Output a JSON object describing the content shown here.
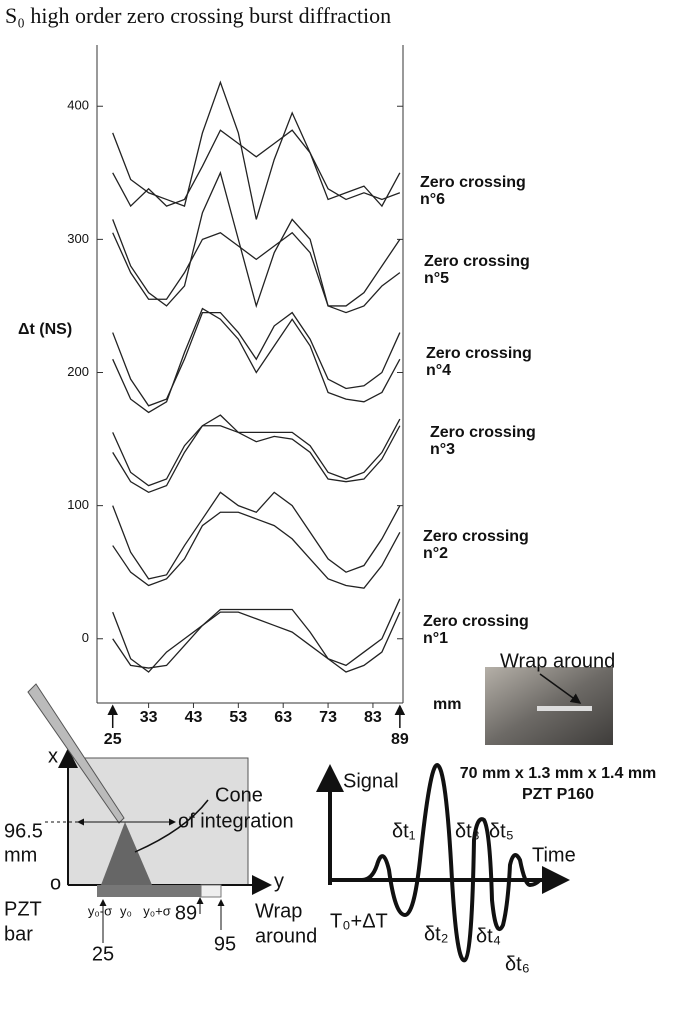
{
  "chart_data": {
    "type": "line",
    "title": "S₀ high order zero crossing burst diffraction",
    "x_label": "mm",
    "y_label": "Δt (NS)",
    "color": "#222222",
    "x": [
      25,
      29,
      33,
      37,
      41,
      45,
      49,
      53,
      57,
      61,
      65,
      69,
      73,
      77,
      81,
      85,
      89
    ],
    "series": [
      {
        "values": [
          380,
          345,
          335,
          330,
          325,
          380,
          418,
          380,
          315,
          360,
          395,
          365,
          330,
          335,
          340,
          325,
          350
        ]
      },
      {
        "values": [
          350,
          325,
          338,
          325,
          330,
          355,
          382,
          372,
          362,
          372,
          382,
          365,
          338,
          330,
          335,
          330,
          335
        ]
      },
      {
        "values": [
          315,
          280,
          260,
          250,
          265,
          320,
          350,
          300,
          250,
          290,
          315,
          300,
          250,
          250,
          260,
          280,
          300
        ]
      },
      {
        "values": [
          305,
          275,
          255,
          255,
          275,
          300,
          305,
          295,
          285,
          295,
          305,
          290,
          250,
          245,
          250,
          265,
          275
        ]
      },
      {
        "values": [
          230,
          195,
          175,
          180,
          210,
          245,
          245,
          230,
          210,
          235,
          245,
          225,
          195,
          188,
          190,
          200,
          230
        ]
      },
      {
        "values": [
          210,
          180,
          170,
          178,
          215,
          248,
          240,
          225,
          200,
          220,
          240,
          220,
          185,
          180,
          178,
          185,
          210
        ]
      },
      {
        "values": [
          155,
          125,
          115,
          120,
          145,
          160,
          168,
          155,
          155,
          155,
          155,
          145,
          125,
          120,
          125,
          140,
          165
        ]
      },
      {
        "values": [
          140,
          118,
          110,
          115,
          140,
          160,
          160,
          155,
          148,
          152,
          150,
          140,
          120,
          118,
          120,
          135,
          160
        ]
      },
      {
        "values": [
          100,
          65,
          45,
          48,
          70,
          90,
          110,
          100,
          95,
          110,
          100,
          80,
          60,
          50,
          55,
          75,
          100
        ]
      },
      {
        "values": [
          70,
          50,
          40,
          45,
          60,
          85,
          95,
          95,
          90,
          85,
          75,
          60,
          45,
          40,
          38,
          55,
          80
        ]
      },
      {
        "values": [
          20,
          -15,
          -25,
          -10,
          0,
          10,
          22,
          22,
          22,
          22,
          22,
          5,
          -15,
          -20,
          -10,
          0,
          30
        ]
      },
      {
        "values": [
          0,
          -20,
          -22,
          -20,
          -5,
          10,
          20,
          20,
          15,
          10,
          5,
          -5,
          -15,
          -25,
          -20,
          -10,
          20
        ]
      }
    ],
    "xlim": [
      21.5,
      89.7
    ],
    "ylim": [
      -46,
      446
    ],
    "xticks": [
      33,
      43,
      53,
      63,
      73,
      83
    ],
    "yticks": [
      0,
      100,
      200,
      300,
      400
    ],
    "x_markers": [
      25,
      89
    ],
    "annotations": [
      [
        "Zero crossing",
        "n°6"
      ],
      [
        "Zero crossing",
        "n°5"
      ],
      [
        "Zero crossing",
        "n°4"
      ],
      [
        "Zero crossing",
        "n°3"
      ],
      [
        "Zero crossing",
        "n°2"
      ],
      [
        "Zero crossing",
        "n°1"
      ]
    ]
  },
  "photo": {
    "label": "Wrap around",
    "caption": [
      "70 mm x 1.3 mm x 1.4 mm",
      "PZT P160"
    ]
  },
  "setup_diagram": {
    "x_axis": "x",
    "y_axis": "y",
    "origin": "o",
    "cone": [
      "Cone",
      "of integration"
    ],
    "height": 96.5,
    "height_unit": "mm",
    "bar": [
      "PZT",
      "bar"
    ],
    "positions": [
      "y₀-σ",
      "y₀",
      "y₀+σ"
    ],
    "marks": [
      25,
      89,
      95
    ],
    "wrap": [
      "Wrap",
      "around"
    ]
  },
  "signal_diagram": {
    "y_axis": "Signal",
    "x_axis": "Time",
    "start": "T₀+ΔT",
    "deltas": [
      "δt₁",
      "δt₂",
      "δt₃",
      "δt₄",
      "δt₅",
      "δt₆"
    ]
  }
}
